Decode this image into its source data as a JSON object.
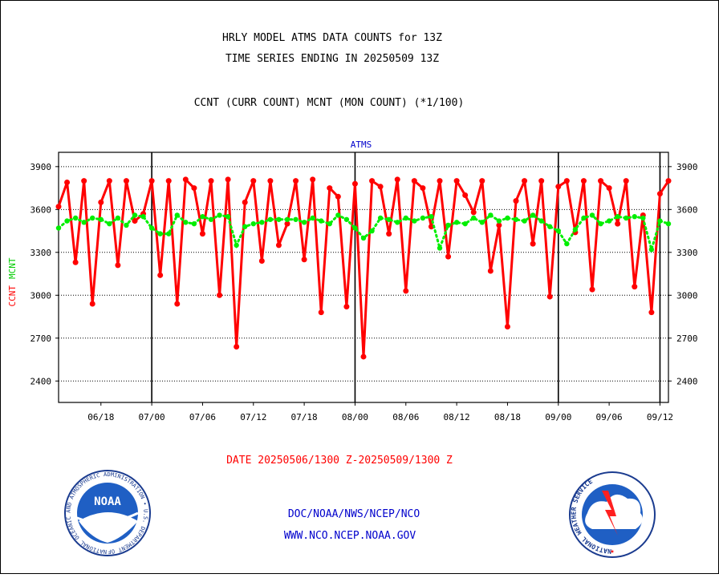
{
  "header": {
    "line1": "HRLY MODEL ATMS DATA COUNTS for 13Z",
    "line2": "TIME SERIES ENDING IN 20250509 13Z",
    "line3": "CCNT (CURR COUNT) MCNT (MON COUNT) (*1/100)"
  },
  "footer": {
    "date_range": "DATE 20250506/1300 Z-20250509/1300 Z",
    "org_path": "DOC/NOAA/NWS/NCEP/NCO",
    "website": "WWW.NCO.NCEP.NOAA.GOV"
  },
  "logos": {
    "noaa": {
      "text": "NOAA",
      "ring_text": "NATIONAL OCEANIC AND ATMOSPHERIC ADMINISTRATION • U.S. DEPARTMENT OF COMMERCE"
    },
    "nws": {
      "ring_text": "NATIONAL WEATHER SERVICE"
    }
  },
  "chart_data": {
    "type": "line",
    "title": "ATMS",
    "ylabel_left_ccnt": "CCNT",
    "ylabel_left_mcnt": "MCNT",
    "yticks": [
      2400,
      2700,
      3000,
      3300,
      3600,
      3900
    ],
    "ylim": [
      2250,
      4000
    ],
    "x_tick_labels": [
      "06/18",
      "07/00",
      "07/06",
      "07/12",
      "07/18",
      "08/00",
      "08/06",
      "08/12",
      "08/18",
      "09/00",
      "09/06",
      "09/12"
    ],
    "x_tick_hours": [
      5,
      11,
      17,
      23,
      29,
      35,
      41,
      47,
      53,
      59,
      65,
      71
    ],
    "xlim": [
      0,
      72
    ],
    "day_boundaries": [
      11,
      35,
      59,
      71
    ],
    "grid": true,
    "colors": {
      "ccnt": "#ff0000",
      "mcnt": "#00ee00"
    },
    "series": [
      {
        "key": "ccnt",
        "style": "solid",
        "values": [
          3620,
          3790,
          3230,
          3800,
          2940,
          3650,
          3800,
          3210,
          3800,
          3520,
          3570,
          3800,
          3140,
          3800,
          2940,
          3810,
          3750,
          3430,
          3800,
          3000,
          3810,
          2640,
          3650,
          3800,
          3240,
          3800,
          3350,
          3500,
          3800,
          3250,
          3810,
          2880,
          3750,
          3690,
          2920,
          3780,
          2570,
          3800,
          3760,
          3430,
          3810,
          3030,
          3800,
          3750,
          3480,
          3800,
          3270,
          3800,
          3700,
          3580,
          3800,
          3170,
          3490,
          2780,
          3660,
          3800,
          3360,
          3800,
          2990,
          3760,
          3800,
          3440,
          3800,
          3040,
          3800,
          3750,
          3500,
          3800,
          3060,
          3560,
          2880,
          3710,
          3800
        ]
      },
      {
        "key": "mcnt",
        "style": "dotted",
        "values": [
          3470,
          3520,
          3540,
          3510,
          3540,
          3530,
          3500,
          3540,
          3490,
          3560,
          3550,
          3470,
          3430,
          3430,
          3560,
          3510,
          3500,
          3550,
          3530,
          3560,
          3550,
          3350,
          3480,
          3500,
          3510,
          3530,
          3530,
          3530,
          3530,
          3510,
          3540,
          3520,
          3500,
          3560,
          3530,
          3470,
          3400,
          3450,
          3540,
          3530,
          3510,
          3540,
          3520,
          3540,
          3550,
          3330,
          3490,
          3510,
          3500,
          3540,
          3510,
          3560,
          3520,
          3540,
          3530,
          3520,
          3560,
          3520,
          3480,
          3450,
          3360,
          3460,
          3540,
          3560,
          3500,
          3520,
          3550,
          3540,
          3550,
          3540,
          3320,
          3520,
          3500
        ]
      }
    ]
  }
}
